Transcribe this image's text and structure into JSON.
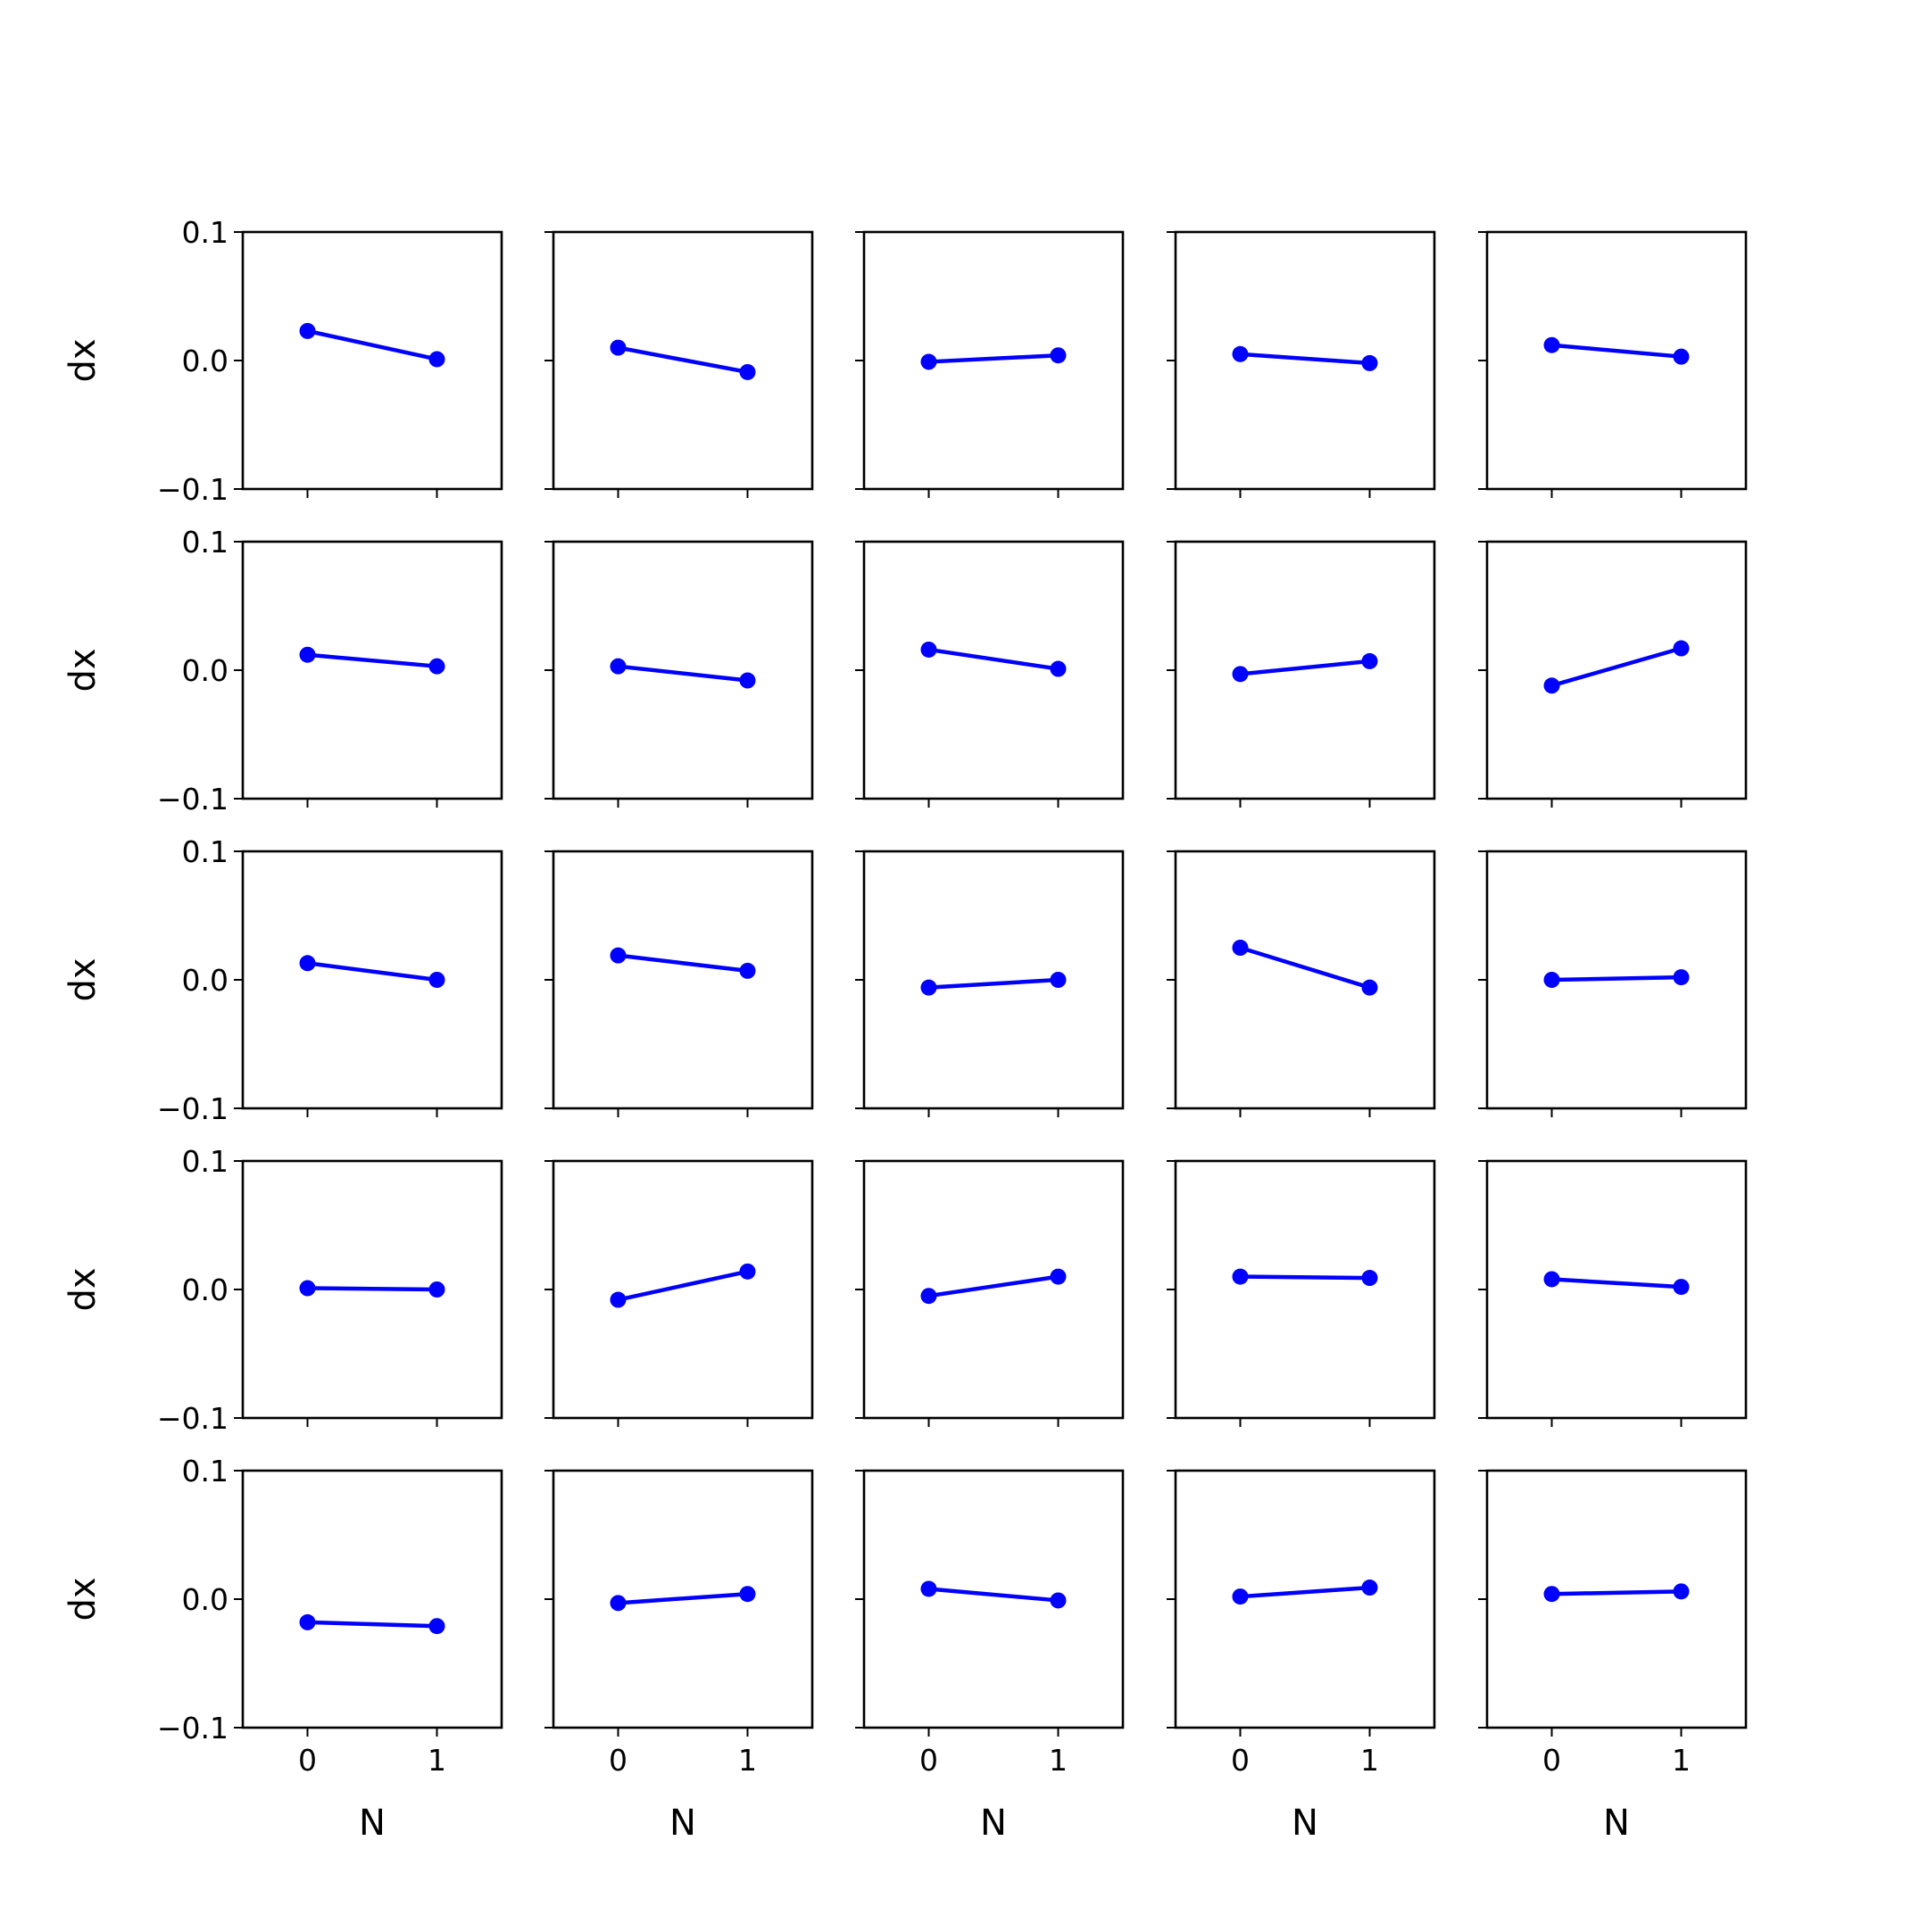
{
  "chart_data": {
    "type": "line",
    "layout": {
      "rows": 5,
      "cols": 5
    },
    "x": [
      0,
      1
    ],
    "xticks": [
      "0",
      "1"
    ],
    "yticks": [
      "0.1",
      "0.0",
      "−0.1"
    ],
    "xlim": [
      -0.5,
      1.5
    ],
    "ylim": [
      -0.1,
      0.1
    ],
    "xlabel": "N",
    "ylabel": "dx",
    "grid": false,
    "series_color": "#0000ff",
    "panels": [
      {
        "values": [
          0.023,
          0.001
        ]
      },
      {
        "values": [
          0.01,
          -0.009
        ]
      },
      {
        "values": [
          -0.001,
          0.004
        ]
      },
      {
        "values": [
          0.005,
          -0.002
        ]
      },
      {
        "values": [
          0.012,
          0.003
        ]
      },
      {
        "values": [
          0.012,
          0.003
        ]
      },
      {
        "values": [
          0.003,
          -0.008
        ]
      },
      {
        "values": [
          0.016,
          0.001
        ]
      },
      {
        "values": [
          -0.003,
          0.007
        ]
      },
      {
        "values": [
          -0.012,
          0.017
        ]
      },
      {
        "values": [
          0.013,
          0.0
        ]
      },
      {
        "values": [
          0.019,
          0.007
        ]
      },
      {
        "values": [
          -0.006,
          0.0
        ]
      },
      {
        "values": [
          0.025,
          -0.006
        ]
      },
      {
        "values": [
          0.0,
          0.002
        ]
      },
      {
        "values": [
          0.001,
          0.0
        ]
      },
      {
        "values": [
          -0.008,
          0.014
        ]
      },
      {
        "values": [
          -0.005,
          0.01
        ]
      },
      {
        "values": [
          0.01,
          0.009
        ]
      },
      {
        "values": [
          0.008,
          0.002
        ]
      },
      {
        "values": [
          -0.018,
          -0.021
        ]
      },
      {
        "values": [
          -0.003,
          0.004
        ]
      },
      {
        "values": [
          0.008,
          -0.001
        ]
      },
      {
        "values": [
          0.002,
          0.009
        ]
      },
      {
        "values": [
          0.004,
          0.006
        ]
      }
    ]
  }
}
